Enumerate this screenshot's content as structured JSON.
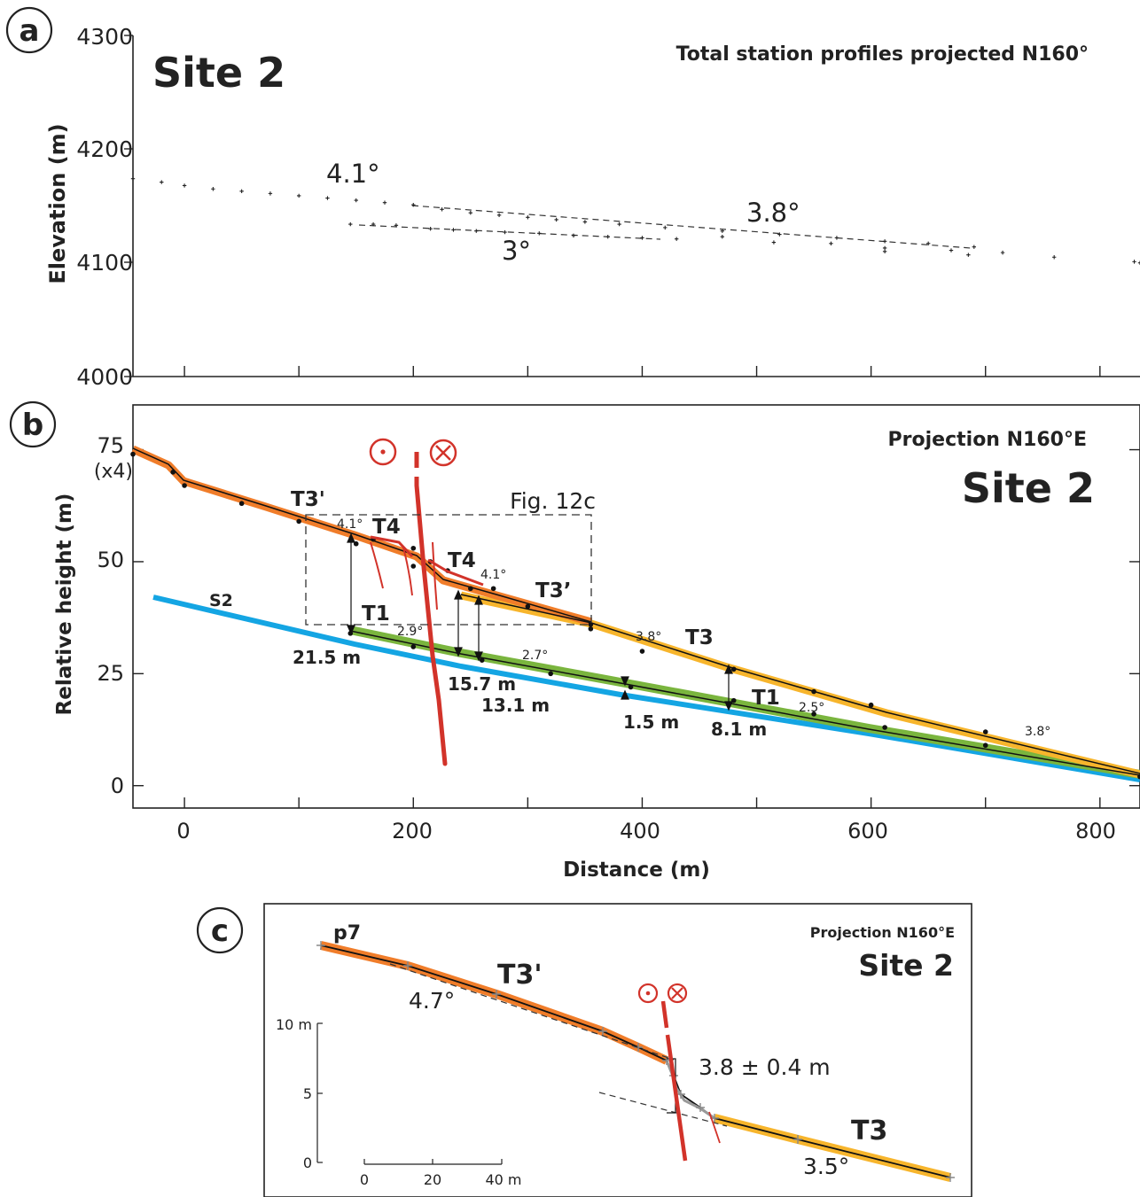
{
  "panels": {
    "a": {
      "letter": "a",
      "site": "Site 2",
      "title": "Total station profiles projected N160°",
      "ylabel": "Elevation (m)",
      "yticks": [
        "4300",
        "4200",
        "4100",
        "4000"
      ],
      "angles": {
        "upper_left": "4.1°",
        "upper_right": "3.8°",
        "lower": "3°"
      }
    },
    "b": {
      "letter": "b",
      "site": "Site 2",
      "title": "Projection N160°E",
      "ylabel": "Relative height  (m)",
      "xlabel": "Distance  (m)",
      "yticks": [
        "75",
        "50",
        "25",
        "0"
      ],
      "yscale_note": "(x4)",
      "xticks": [
        "0",
        "200",
        "400",
        "600",
        "800"
      ],
      "inset_box_label": "Fig. 12c",
      "surface_labels": {
        "t3prime_left": "T3'",
        "t4_left": "T4",
        "t4_right": "T4",
        "t3prime_right": "T3’",
        "t1_left": "T1",
        "t1_right": "T1",
        "t3": "T3",
        "s2": "S2"
      },
      "angles": {
        "a41_left": "4.1°",
        "a41_right": "4.1°",
        "a29": "2.9°",
        "a27": "2.7°",
        "a38_mid": "3.8°",
        "a25": "2.5°",
        "a38_right": "3.8°"
      },
      "offsets": {
        "o215": "21.5 m",
        "o157": "15.7 m",
        "o131": "13.1 m",
        "o15": "1.5 m",
        "o81": "8.1 m"
      }
    },
    "c": {
      "letter": "c",
      "site": "Site 2",
      "title": "Projection N160°E",
      "profile": "p7",
      "surface_upper": "T3'",
      "surface_lower": "T3",
      "angle_upper": "4.7°",
      "angle_lower": "3.5°",
      "offset": "3.8 ± 0.4 m",
      "yticks": [
        "10 m",
        "5",
        "0"
      ],
      "xticks": [
        "0",
        "20",
        "40 m"
      ]
    }
  },
  "colors": {
    "T3prime": "#f07d2a",
    "T3": "#f7b52c",
    "T1": "#7ab53e",
    "S2": "#14a5e3",
    "fault": "#d2332a",
    "dots": "#111111"
  },
  "chart_data": [
    {
      "type": "scatter",
      "panel": "a",
      "title": "Total station profiles projected N160°",
      "xlabel": "",
      "ylabel": "Elevation (m)",
      "xlim": [
        -45,
        835
      ],
      "ylim": [
        4000,
        4300
      ],
      "series": [
        {
          "name": "",
          "x": [
            -45,
            -20,
            0,
            25,
            50,
            75,
            100,
            125,
            150,
            175,
            200,
            225,
            250,
            275,
            300,
            325,
            350,
            380,
            420,
            470,
            520,
            570,
            612,
            650,
            690
          ],
          "y": [
            4174,
            4171,
            4168,
            4165,
            4163,
            4161,
            4159,
            4157,
            4155,
            4153,
            4151,
            4147,
            4144,
            4142,
            4140,
            4138,
            4136,
            4134,
            4131,
            4128,
            4125,
            4122,
            4119,
            4117,
            4114
          ]
        },
        {
          "name": "",
          "x": [
            145,
            165,
            185,
            215,
            235,
            255,
            280,
            310,
            340,
            370,
            400,
            430
          ],
          "y": [
            4134,
            4134,
            4133,
            4130,
            4129,
            4128,
            4127,
            4126,
            4124,
            4123,
            4122,
            4121
          ]
        },
        {
          "name": "",
          "x": [
            470,
            515,
            565,
            612,
            612,
            670,
            685,
            715,
            760,
            830,
            835
          ],
          "y": [
            4123,
            4118,
            4117,
            4113,
            4110,
            4111,
            4107,
            4109,
            4105,
            4101,
            4100
          ]
        }
      ],
      "trendlines": [
        {
          "label": "4.1°",
          "x": [
            200,
            700
          ],
          "y": [
            4152,
            4114
          ]
        },
        {
          "label": "3°",
          "x": [
            140,
            420
          ],
          "y": [
            4134,
            4122
          ]
        }
      ]
    },
    {
      "type": "line",
      "panel": "b",
      "title": "Projection N160°E",
      "xlabel": "Distance  (m)",
      "ylabel": "Relative height  (m)",
      "xlim": [
        -45,
        835
      ],
      "ylim": [
        -5,
        85
      ],
      "series": [
        {
          "name": "T3'",
          "x": [
            -45,
            -10,
            0,
            50,
            100,
            150,
            200,
            250,
            300,
            355
          ],
          "y": [
            74,
            70,
            67,
            63,
            59,
            54,
            49,
            44,
            40,
            36
          ]
        },
        {
          "name": "T3",
          "x": [
            355,
            400,
            480,
            550,
            600,
            700,
            835
          ],
          "y": [
            35,
            30,
            26,
            21,
            18,
            12,
            2
          ]
        },
        {
          "name": "T4",
          "x": [
            165,
            200,
            215,
            230,
            270
          ],
          "y": [
            55,
            53,
            50,
            48,
            44
          ]
        },
        {
          "name": "T1",
          "x": [
            145,
            200,
            260,
            320,
            390,
            480,
            550,
            612,
            700,
            835
          ],
          "y": [
            34,
            31,
            28,
            25,
            22,
            19,
            16,
            13,
            9,
            2
          ]
        },
        {
          "name": "S2",
          "x": [
            -25,
            50,
            150,
            250,
            350,
            450,
            550,
            612,
            700,
            835
          ],
          "y": [
            42,
            38,
            33,
            27,
            23,
            18,
            13,
            10,
            7,
            1
          ]
        }
      ],
      "annotations": [
        {
          "label": "21.5 m",
          "x": 146,
          "y": [
            33,
            55
          ]
        },
        {
          "label": "15.7 m",
          "x": 240,
          "y": [
            28,
            44
          ]
        },
        {
          "label": "13.1 m",
          "x": 258,
          "y": [
            28,
            41
          ]
        },
        {
          "label": "1.5 m",
          "x": 388,
          "y": [
            21,
            23
          ]
        },
        {
          "label": "8.1 m",
          "x": 478,
          "y": [
            18,
            26
          ]
        }
      ]
    },
    {
      "type": "line",
      "panel": "c",
      "title": "Projection N160°E",
      "xlabel": "",
      "ylabel": "",
      "xlim": [
        -10,
        190
      ],
      "ylim": [
        0,
        25
      ],
      "series": [
        {
          "name": "T3'",
          "x": [
            -6,
            20,
            60,
            100,
            120,
            125
          ],
          "y": [
            23.5,
            21,
            16.5,
            12,
            8.5,
            7
          ]
        },
        {
          "name": "scarp",
          "x": [
            125,
            130,
            140
          ],
          "y": [
            7,
            4.5,
            3.2
          ]
        },
        {
          "name": "T3",
          "x": [
            140,
            170,
            180
          ],
          "y": [
            3.2,
            0.5,
            -1.0
          ]
        }
      ],
      "annotations": [
        {
          "label": "3.8 ± 0.4 m"
        }
      ]
    }
  ]
}
